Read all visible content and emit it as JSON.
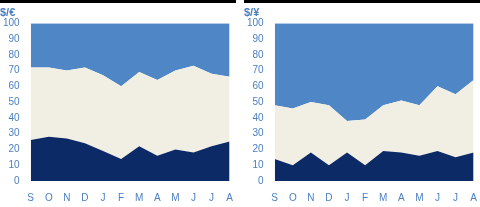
{
  "chart_data": [
    {
      "type": "area",
      "title": "$/€",
      "stacked": true,
      "grid": false,
      "categories": [
        "S",
        "O",
        "N",
        "D",
        "J",
        "F",
        "M",
        "A",
        "M",
        "J",
        "J",
        "A"
      ],
      "ylim": [
        0,
        100
      ],
      "yticks": [
        0,
        10,
        20,
        30,
        40,
        50,
        60,
        70,
        80,
        90,
        100
      ],
      "series": [
        {
          "color": "#0c2a66",
          "values": [
            26,
            28,
            27,
            24,
            19,
            14,
            22,
            16,
            20,
            18,
            22,
            25
          ]
        },
        {
          "color": "#f1efe3",
          "values": [
            46,
            44,
            43,
            48,
            48,
            46,
            47,
            48,
            50,
            55,
            46,
            41
          ]
        },
        {
          "color": "#4f86c6",
          "values": [
            28,
            28,
            30,
            28,
            33,
            40,
            31,
            36,
            30,
            27,
            32,
            34
          ]
        }
      ]
    },
    {
      "type": "area",
      "title": "$/¥",
      "stacked": true,
      "grid": false,
      "categories": [
        "S",
        "O",
        "N",
        "D",
        "J",
        "F",
        "M",
        "A",
        "M",
        "J",
        "J",
        "A"
      ],
      "ylim": [
        0,
        100
      ],
      "yticks": [
        0,
        10,
        20,
        30,
        40,
        50,
        60,
        70,
        80,
        90,
        100
      ],
      "series": [
        {
          "color": "#0c2a66",
          "values": [
            14,
            10,
            18,
            10,
            18,
            10,
            19,
            18,
            16,
            19,
            15,
            18
          ]
        },
        {
          "color": "#f1efe3",
          "values": [
            34,
            36,
            32,
            38,
            20,
            29,
            29,
            33,
            32,
            41,
            40,
            46
          ]
        },
        {
          "color": "#4f86c6",
          "values": [
            52,
            54,
            50,
            52,
            62,
            61,
            52,
            49,
            52,
            40,
            45,
            36
          ]
        }
      ]
    }
  ]
}
